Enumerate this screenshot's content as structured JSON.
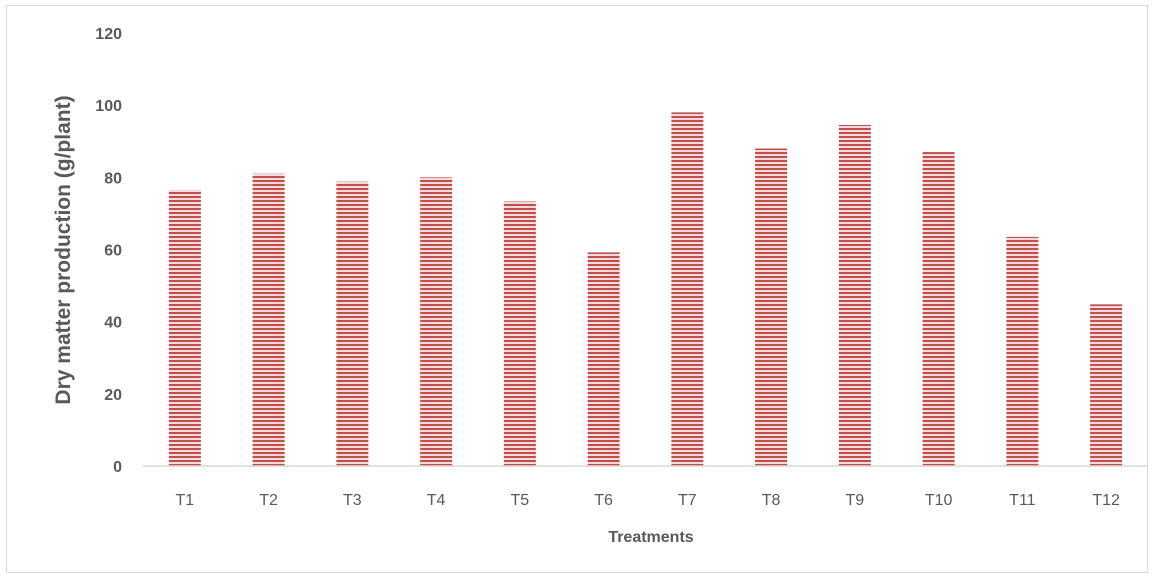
{
  "chart_data": {
    "type": "bar",
    "categories": [
      "T1",
      "T2",
      "T3",
      "T4",
      "T5",
      "T6",
      "T7",
      "T8",
      "T9",
      "T10",
      "T11",
      "T12"
    ],
    "values": [
      76.5,
      81,
      78.8,
      80,
      73.3,
      59.2,
      98,
      88,
      94.5,
      87,
      63.5,
      44.8
    ],
    "xlabel": "Treatments",
    "ylabel": "Dry matter production (g/plant)",
    "ylim": [
      0,
      120
    ],
    "yticks": [
      0,
      20,
      40,
      60,
      80,
      100,
      120
    ],
    "grid": false,
    "bar_color": "#c0504d",
    "bar_pattern": "horizontal-stripes"
  }
}
